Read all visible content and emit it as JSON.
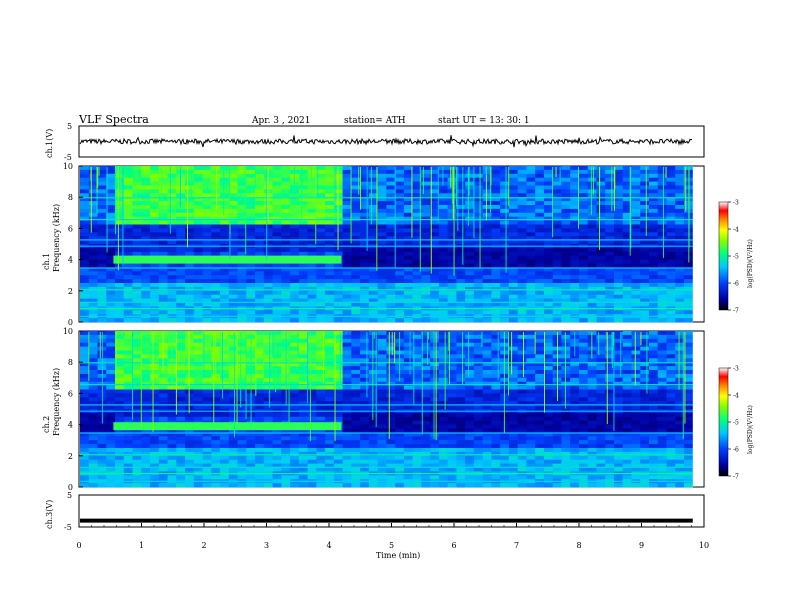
{
  "header": {
    "title": "VLF  Spectra",
    "date": "Apr. 3  , 2021",
    "station": "station= ATH",
    "start": "start  UT  =   13: 30: 1"
  },
  "chart_data": [
    {
      "type": "line",
      "name": "ch1-waveform",
      "ylabel": "ch.1(V)",
      "ylim": [
        -5,
        5
      ],
      "yticks": [
        "5",
        "-5"
      ],
      "x_range": [
        0,
        10
      ],
      "data_end_min": 9.82,
      "baseline": 0,
      "amplitude_approx": 1
    },
    {
      "type": "heatmap",
      "name": "ch1-spectrogram",
      "ylabel": "ch.1\nFrequency  (kHz)",
      "ylim": [
        0,
        10
      ],
      "yticks": [
        "0",
        "2",
        "4",
        "6",
        "8",
        "10"
      ],
      "x_range": [
        0,
        10
      ],
      "data_end_min": 9.82,
      "colorbar": {
        "label": "log(PSD)(V²/Hz)",
        "range": [
          -7,
          -3
        ],
        "ticks": [
          "-3",
          "-4",
          "-5",
          "-6",
          "-7"
        ]
      },
      "signal_segment": {
        "start_min": 0.55,
        "end_min": 4.2,
        "freq_khz": 4.0
      }
    },
    {
      "type": "heatmap",
      "name": "ch2-spectrogram",
      "ylabel": "ch.2\nFrequency  (kHz)",
      "ylim": [
        0,
        10
      ],
      "yticks": [
        "0",
        "2",
        "4",
        "6",
        "8",
        "10"
      ],
      "x_range": [
        0,
        10
      ],
      "data_end_min": 9.82,
      "colorbar": {
        "label": "log(PSD)(V²/Hz)",
        "range": [
          -7,
          -3
        ],
        "ticks": [
          "-3",
          "-4",
          "-5",
          "-6",
          "-7"
        ]
      },
      "signal_segment": {
        "start_min": 0.55,
        "end_min": 4.2,
        "freq_khz": 3.9
      }
    },
    {
      "type": "line",
      "name": "ch3-waveform",
      "ylabel": "ch.3(V)",
      "ylim": [
        -5,
        5
      ],
      "yticks": [
        "5",
        "-5"
      ],
      "x_range": [
        0,
        10
      ],
      "data_end_min": 9.82,
      "baseline": -3,
      "xlabel": "Time  (min)",
      "xticks": [
        "0",
        "1",
        "2",
        "3",
        "4",
        "5",
        "6",
        "7",
        "8",
        "9",
        "10"
      ]
    }
  ],
  "colors": {
    "waveform": "#000000",
    "background": "#ffffff"
  }
}
